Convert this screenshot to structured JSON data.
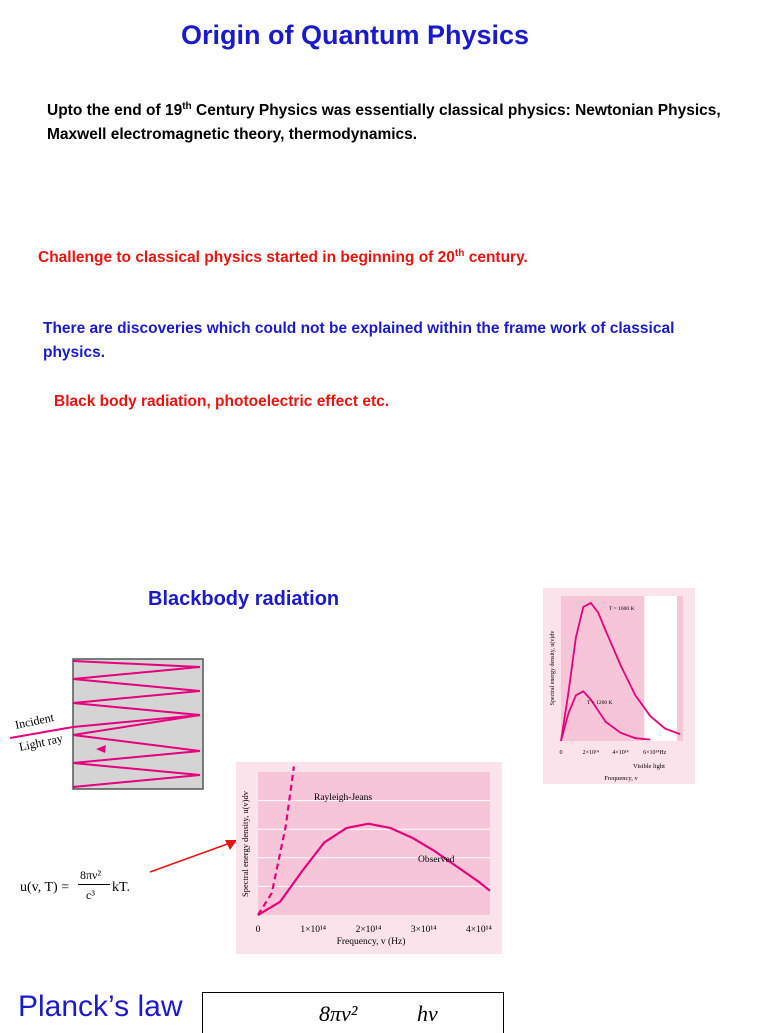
{
  "title": "Origin of Quantum Physics",
  "intro": {
    "pre": "Upto the end of 19",
    "sup": "th",
    "post": " Century Physics was essentially classical physics: Newtonian Physics, Maxwell electromagnetic theory, thermodynamics."
  },
  "challenge": {
    "pre": "Challenge to classical physics started in beginning of 20",
    "sup": "th",
    "post": " century."
  },
  "discoveries": "There are discoveries which could not be explained within the frame work of classical physics.",
  "examples": "Black body radiation, photoelectric effect etc.",
  "blackbody_heading": "Blackbody radiation",
  "cavity": {
    "incident": "Incident",
    "light_ray": "Light ray"
  },
  "rj_formula": {
    "lhs": "u(v, T) =",
    "num": "8πν²",
    "den": "c³",
    "rhs": "kT."
  },
  "chart_data": [
    {
      "type": "line",
      "ylabel": "Spectral energy density, u(v)dv",
      "xlabel": "Frequency, v (Hz)",
      "x_ticks": [
        "0",
        "1×10¹⁴",
        "2×10¹⁴",
        "3×10¹⁴",
        "4×10¹⁴"
      ],
      "series": [
        {
          "name": "Rayleigh-Jeans",
          "style": "dashed",
          "x": [
            0.0,
            0.25,
            0.5,
            0.65
          ],
          "y": [
            0.0,
            0.2,
            0.8,
            1.35
          ]
        },
        {
          "name": "Observed",
          "style": "solid",
          "x": [
            0.0,
            0.4,
            0.8,
            1.2,
            1.6,
            2.0,
            2.4,
            2.8,
            3.2,
            3.6,
            4.0,
            4.2
          ],
          "y": [
            0.0,
            0.12,
            0.4,
            0.66,
            0.79,
            0.83,
            0.79,
            0.7,
            0.58,
            0.44,
            0.3,
            0.22
          ]
        }
      ],
      "xlim": [
        0,
        4.2
      ],
      "ylim": [
        0,
        1.3
      ],
      "colors": {
        "curve": "#e6007e",
        "background": "#f6c6d8",
        "grid": "#ffffff"
      }
    },
    {
      "type": "line",
      "ylabel": "Spectral energy density, u(v)dv",
      "xlabel": "Frequency, v",
      "x_ticks": [
        "0",
        "2×10¹⁴",
        "4×10¹⁴",
        "6×10¹⁴Hz"
      ],
      "band_label": "Visible light",
      "series": [
        {
          "name": "T = 1600 K",
          "x": [
            0.0,
            0.5,
            1.0,
            1.5,
            2.0,
            2.5,
            3.0,
            4.0,
            5.0,
            6.0,
            7.0,
            8.0
          ],
          "y": [
            0.0,
            0.35,
            0.75,
            0.97,
            1.0,
            0.93,
            0.8,
            0.55,
            0.33,
            0.18,
            0.09,
            0.05
          ]
        },
        {
          "name": "T = 1200 K",
          "x": [
            0.0,
            0.5,
            1.0,
            1.5,
            2.0,
            2.5,
            3.0,
            4.0,
            5.0,
            6.0
          ],
          "y": [
            0.0,
            0.2,
            0.33,
            0.36,
            0.3,
            0.22,
            0.14,
            0.06,
            0.02,
            0.01
          ]
        }
      ],
      "xlim": [
        0,
        8.2
      ],
      "ylim": [
        0,
        1.05
      ],
      "colors": {
        "curve": "#e6007e",
        "background": "#f6c6d8",
        "visible_band": "#ffffff"
      }
    }
  ],
  "planck_heading": "Planck’s  law",
  "planck_formula": {
    "num1": "8πν²",
    "num2": "hν"
  }
}
